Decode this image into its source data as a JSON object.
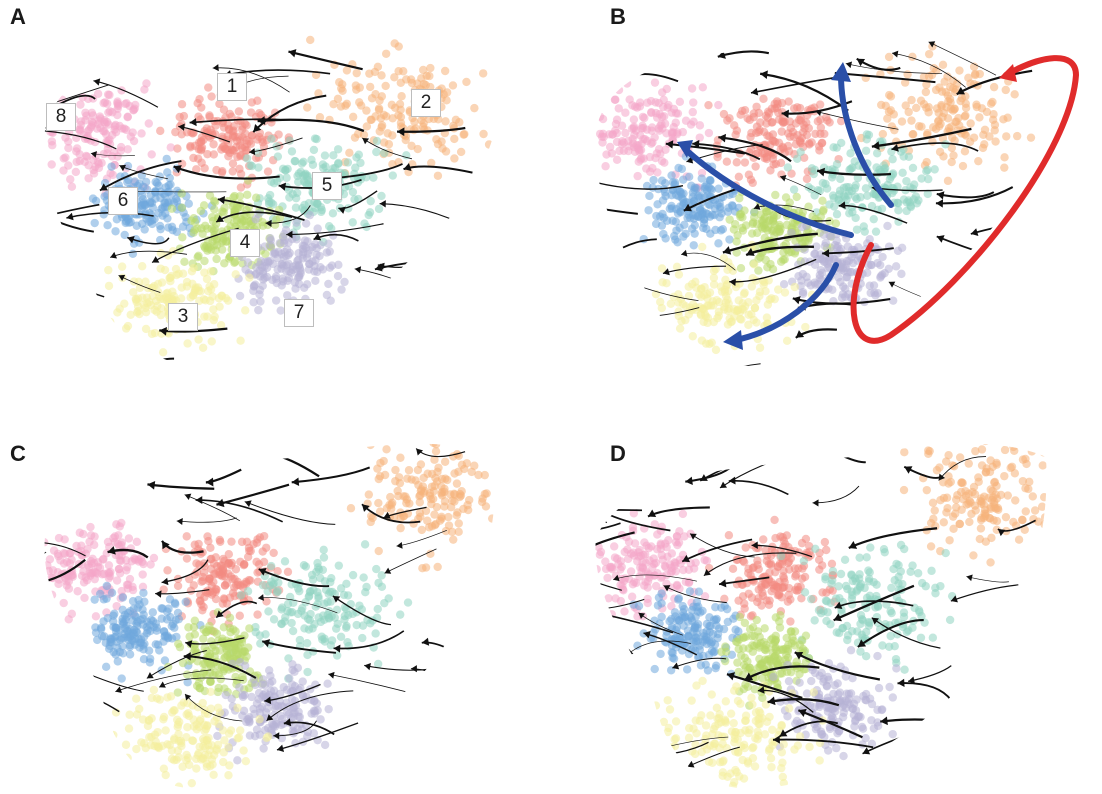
{
  "panels": [
    {
      "letter": "A",
      "cluster_labels": [
        "1",
        "2",
        "3",
        "4",
        "5",
        "6",
        "7",
        "8"
      ]
    },
    {
      "letter": "B"
    },
    {
      "letter": "C"
    },
    {
      "letter": "D"
    }
  ],
  "colors": {
    "c1": "#f28b82",
    "c2": "#f6b27a",
    "c3": "#f4ef9c",
    "c4": "#b8d96a",
    "c5": "#8fd3c1",
    "c6": "#6fa8dc",
    "c7": "#b7b3d6",
    "c8": "#f4a6c8",
    "stream": "#111111",
    "blue_arrow": "#2a4fa8",
    "red_arrow": "#e02b2b"
  }
}
